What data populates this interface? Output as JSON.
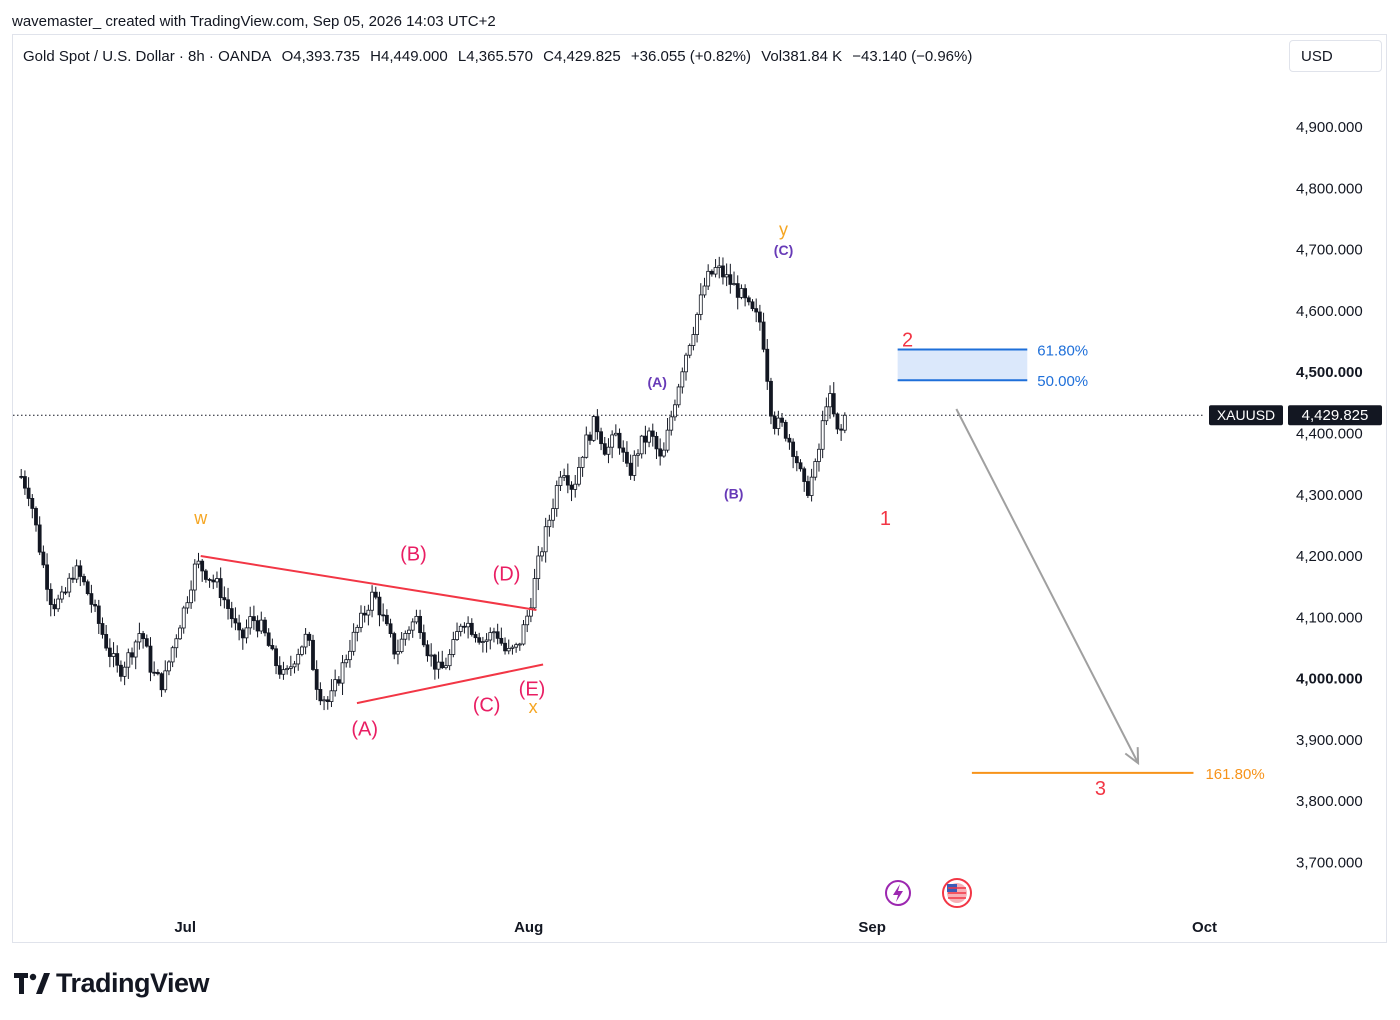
{
  "byline": "wavemaster_ created with TradingView.com, Sep 05, 2026 14:03 UTC+2",
  "header": {
    "symbol": "Gold Spot / U.S. Dollar · 8h · OANDA",
    "open": "O4,393.735",
    "high": "H4,449.000",
    "low": "L4,365.570",
    "close": "C4,429.825",
    "change": "+36.055 (+0.82%)",
    "volume": "Vol381.84 K",
    "vol_change": "−43.140 (−0.96%)"
  },
  "currency": "USD",
  "logo_text": "TradingView",
  "chart_data": {
    "type": "candlestick",
    "symbol_tag": "XAUUSD",
    "last_price": 4429.825,
    "last_price_label": "4,429.825",
    "ylim": [
      3640,
      4980
    ],
    "y_ticks": [
      {
        "value": 4900,
        "label": "4,900.000"
      },
      {
        "value": 4800,
        "label": "4,800.000"
      },
      {
        "value": 4700,
        "label": "4,700.000"
      },
      {
        "value": 4600,
        "label": "4,600.000"
      },
      {
        "value": 4500,
        "label": "4,500.000",
        "bold": true
      },
      {
        "value": 4400,
        "label": "4,400.000"
      },
      {
        "value": 4300,
        "label": "4,300.000"
      },
      {
        "value": 4200,
        "label": "4,200.000"
      },
      {
        "value": 4100,
        "label": "4,100.000"
      },
      {
        "value": 4000,
        "label": "4,000.000",
        "bold": true
      },
      {
        "value": 3900,
        "label": "3,900.000"
      },
      {
        "value": 3800,
        "label": "3,800.000"
      },
      {
        "value": 3700,
        "label": "3,700.000"
      }
    ],
    "x_ticks": [
      {
        "day": 30,
        "label": "Jul"
      },
      {
        "day": 61,
        "label": "Aug"
      },
      {
        "day": 92,
        "label": "Sep"
      },
      {
        "day": 122,
        "label": "Oct"
      }
    ],
    "x_range_days": [
      15,
      134
    ],
    "price_path": [
      [
        15.2,
        4330
      ],
      [
        16,
        4300
      ],
      [
        17,
        4200
      ],
      [
        18,
        4120
      ],
      [
        19,
        4130
      ],
      [
        20,
        4180
      ],
      [
        21,
        4150
      ],
      [
        22,
        4100
      ],
      [
        23,
        4050
      ],
      [
        24,
        4010
      ],
      [
        25,
        4040
      ],
      [
        26,
        4080
      ],
      [
        27,
        4010
      ],
      [
        28,
        3990
      ],
      [
        29,
        4060
      ],
      [
        30,
        4120
      ],
      [
        31,
        4190
      ],
      [
        32,
        4170
      ],
      [
        33,
        4150
      ],
      [
        34,
        4110
      ],
      [
        35,
        4060
      ],
      [
        36,
        4100
      ],
      [
        37,
        4080
      ],
      [
        38,
        4030
      ],
      [
        39,
        4000
      ],
      [
        40,
        4040
      ],
      [
        41,
        4070
      ],
      [
        42,
        3980
      ],
      [
        43,
        3960
      ],
      [
        44,
        4010
      ],
      [
        45,
        4060
      ],
      [
        46,
        4100
      ],
      [
        47,
        4140
      ],
      [
        48,
        4090
      ],
      [
        49,
        4040
      ],
      [
        50,
        4080
      ],
      [
        51,
        4100
      ],
      [
        52,
        4040
      ],
      [
        53,
        4010
      ],
      [
        54,
        4040
      ],
      [
        55,
        4100
      ],
      [
        56,
        4080
      ],
      [
        57,
        4060
      ],
      [
        58,
        4080
      ],
      [
        59,
        4040
      ],
      [
        60,
        4050
      ],
      [
        61,
        4110
      ],
      [
        62,
        4200
      ],
      [
        63,
        4270
      ],
      [
        64,
        4350
      ],
      [
        65,
        4310
      ],
      [
        66,
        4380
      ],
      [
        67,
        4420
      ],
      [
        68,
        4370
      ],
      [
        69,
        4400
      ],
      [
        70,
        4330
      ],
      [
        71,
        4380
      ],
      [
        72,
        4400
      ],
      [
        73,
        4350
      ],
      [
        74,
        4440
      ],
      [
        75,
        4520
      ],
      [
        76,
        4580
      ],
      [
        77,
        4650
      ],
      [
        78,
        4670
      ],
      [
        79,
        4650
      ],
      [
        80,
        4630
      ],
      [
        81,
        4600
      ],
      [
        82,
        4580
      ],
      [
        83,
        4420
      ],
      [
        84,
        4410
      ],
      [
        85,
        4370
      ],
      [
        86,
        4300
      ],
      [
        87,
        4350
      ],
      [
        88,
        4470
      ],
      [
        89,
        4390
      ],
      [
        89.6,
        4430
      ]
    ],
    "annotations": [
      {
        "text": "w",
        "day": 31.4,
        "price": 4252,
        "color": "#f5a623",
        "size": 18
      },
      {
        "text": "(A)",
        "day": 46.2,
        "price": 3907,
        "color": "#e91e63",
        "size": 20
      },
      {
        "text": "(B)",
        "day": 50.6,
        "price": 4193,
        "color": "#e91e63",
        "size": 20
      },
      {
        "text": "(C)",
        "day": 57.2,
        "price": 3946,
        "color": "#e91e63",
        "size": 20
      },
      {
        "text": "(D)",
        "day": 59.0,
        "price": 4160,
        "color": "#e91e63",
        "size": 20
      },
      {
        "text": "(E)",
        "day": 61.3,
        "price": 3972,
        "color": "#e91e63",
        "size": 20
      },
      {
        "text": "x",
        "day": 61.4,
        "price": 3944,
        "color": "#f5a623",
        "size": 18
      },
      {
        "text": "(A)",
        "day": 72.6,
        "price": 4476,
        "color": "#673ab7",
        "size": 14
      },
      {
        "text": "(B)",
        "day": 79.5,
        "price": 4294,
        "color": "#673ab7",
        "size": 14
      },
      {
        "text": "y",
        "day": 84.0,
        "price": 4723,
        "color": "#f5a623",
        "size": 18
      },
      {
        "text": "(C)",
        "day": 84.0,
        "price": 4691,
        "color": "#673ab7",
        "size": 14
      },
      {
        "text": "1",
        "day": 93.2,
        "price": 4251,
        "color": "#f23645",
        "size": 20
      },
      {
        "text": "2",
        "day": 95.2,
        "price": 4542,
        "color": "#f23645",
        "size": 20
      },
      {
        "text": "3",
        "day": 112.6,
        "price": 3810,
        "color": "#f23645",
        "size": 20
      }
    ],
    "trendlines": [
      {
        "from": [
          31.4,
          4200
        ],
        "to": [
          61.7,
          4112
        ],
        "color": "#f23645"
      },
      {
        "from": [
          45.5,
          3960
        ],
        "to": [
          62.3,
          4023
        ],
        "color": "#f23645"
      }
    ],
    "fib_zone": {
      "day_from": 94.3,
      "day_to": 106.0,
      "levels": [
        {
          "price": 4537,
          "label": "61.80%"
        },
        {
          "price": 4487,
          "label": "50.00%"
        }
      ],
      "color": "#1e6fd9",
      "fill": "#dbe8fb"
    },
    "fib_target": {
      "price": 3846,
      "day_from": 101.0,
      "day_to": 121.0,
      "label": "161.80%",
      "color": "#f7931a"
    },
    "projection_arrow": {
      "from": [
        99.6,
        4440
      ],
      "to": [
        116.0,
        3862
      ],
      "color": "#a0a0a0"
    }
  }
}
